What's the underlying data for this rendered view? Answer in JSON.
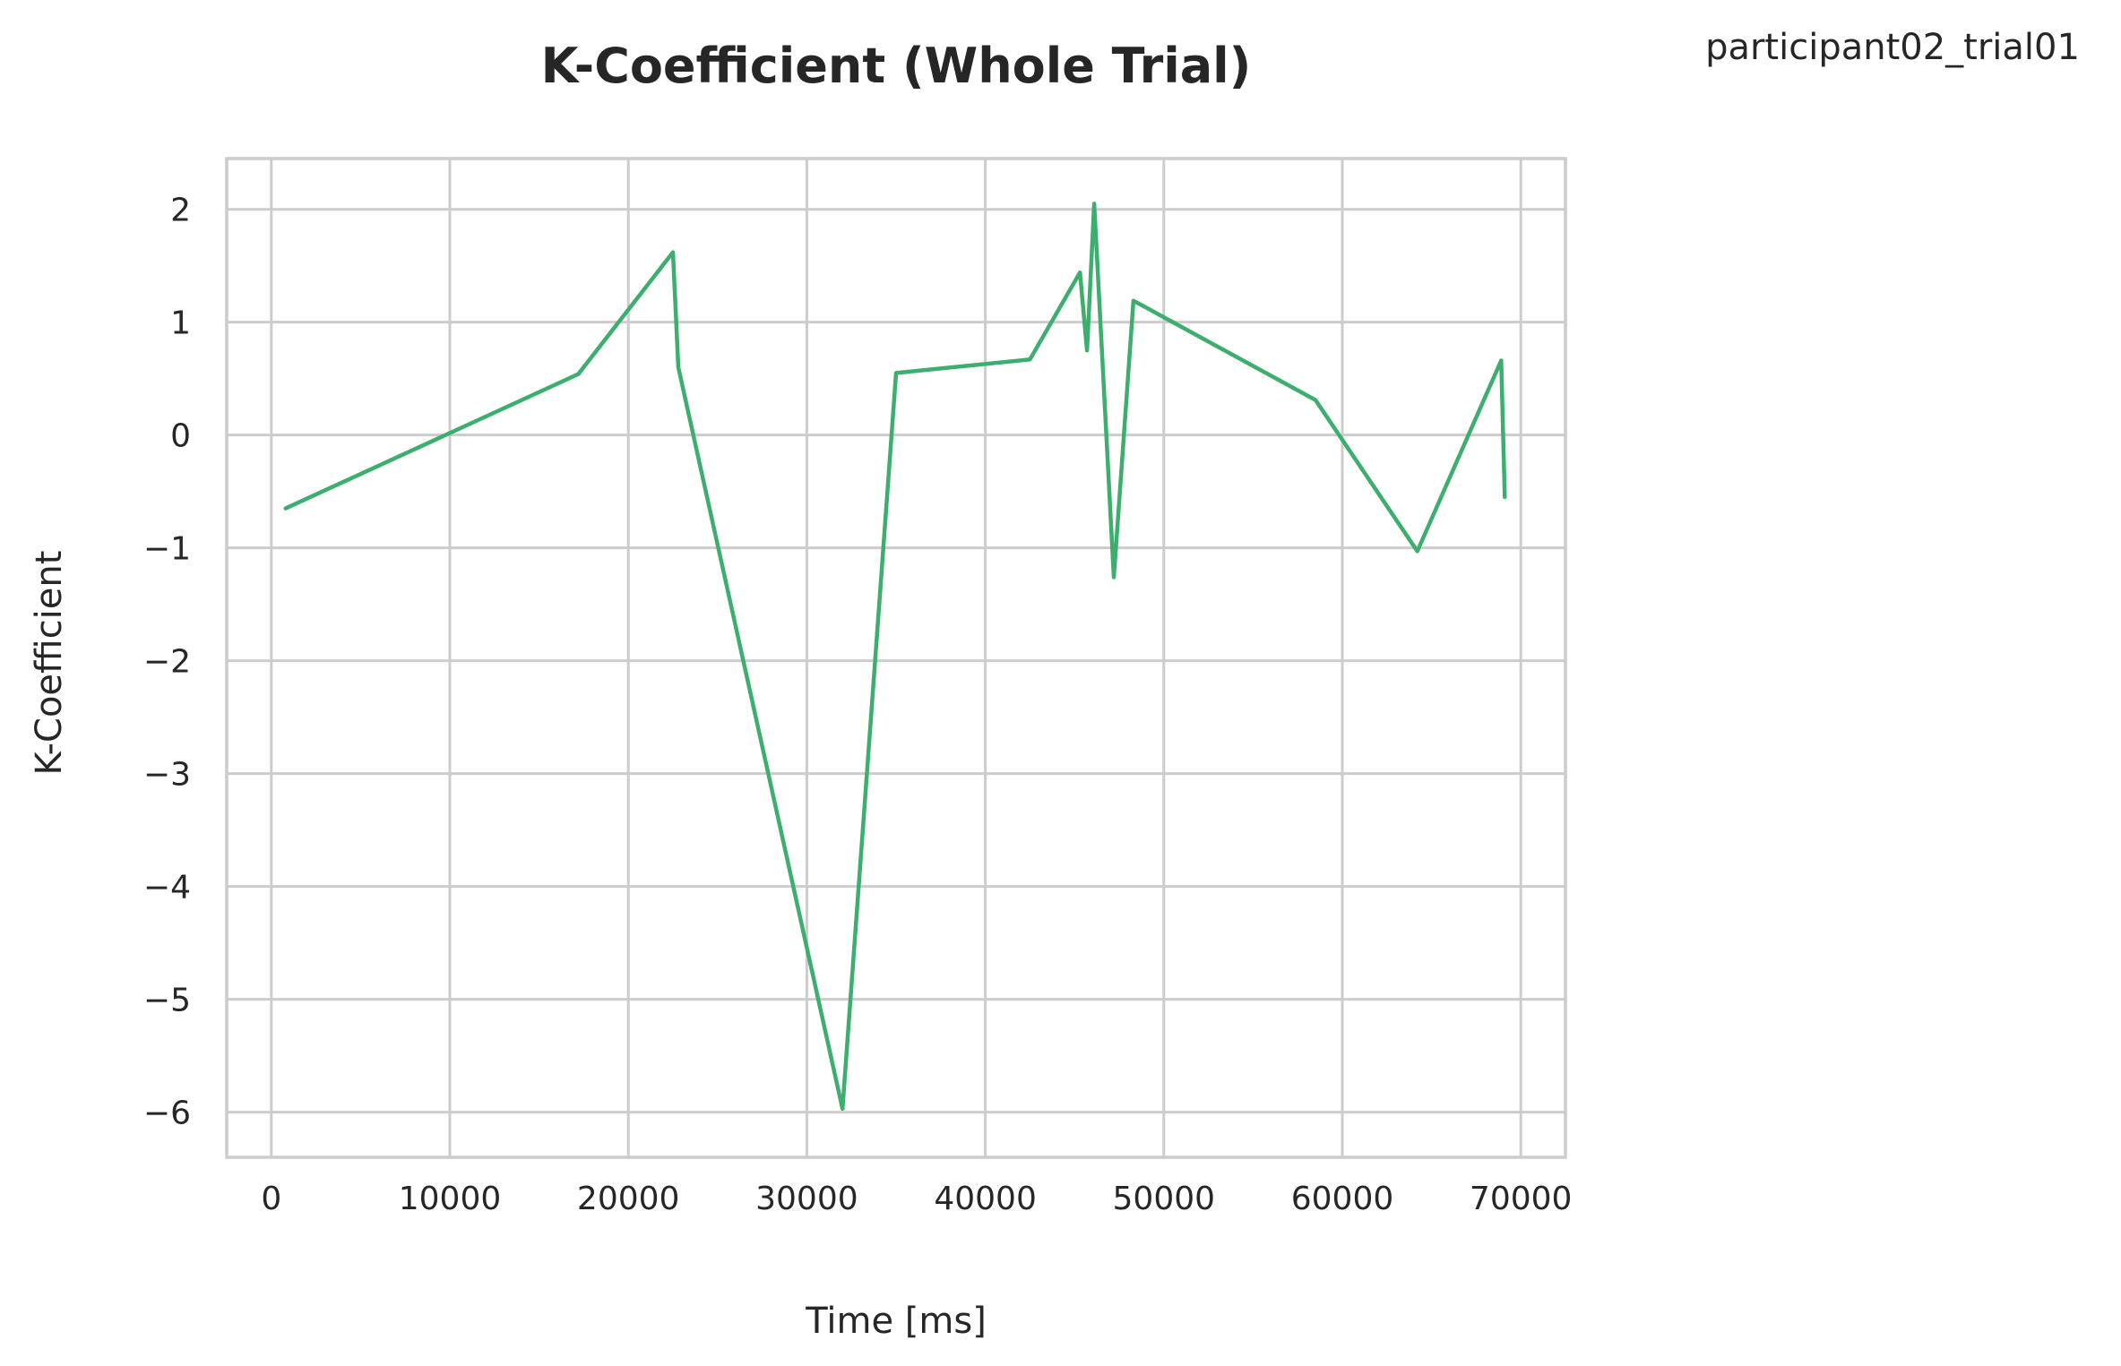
{
  "figure": {
    "corner_label": "participant02_trial01"
  },
  "chart_data": {
    "type": "line",
    "title": "K-Coefficient (Whole Trial)",
    "xlabel": "Time [ms]",
    "ylabel": "K-Coefficient",
    "xlim": [
      -2500,
      72500
    ],
    "ylim": [
      -6.4,
      2.45
    ],
    "xticks": [
      0,
      10000,
      20000,
      30000,
      40000,
      50000,
      60000,
      70000
    ],
    "xtick_labels": [
      "0",
      "10000",
      "20000",
      "30000",
      "40000",
      "50000",
      "60000",
      "70000"
    ],
    "yticks": [
      2,
      1,
      0,
      -1,
      -2,
      -3,
      -4,
      -5,
      -6
    ],
    "ytick_labels": [
      "2",
      "1",
      "0",
      "−1",
      "−2",
      "−3",
      "−4",
      "−5",
      "−6"
    ],
    "grid": true,
    "series": [
      {
        "color": "#3cae6e",
        "x": [
          800,
          17200,
          22500,
          22800,
          32000,
          35000,
          42500,
          45300,
          45700,
          46100,
          47200,
          48300,
          58500,
          64200,
          68900,
          69100
        ],
        "y": [
          -0.65,
          0.54,
          1.62,
          0.6,
          -5.97,
          0.55,
          0.67,
          1.44,
          0.75,
          2.05,
          -1.26,
          1.19,
          0.31,
          -1.03,
          0.66,
          -0.55
        ]
      }
    ]
  }
}
